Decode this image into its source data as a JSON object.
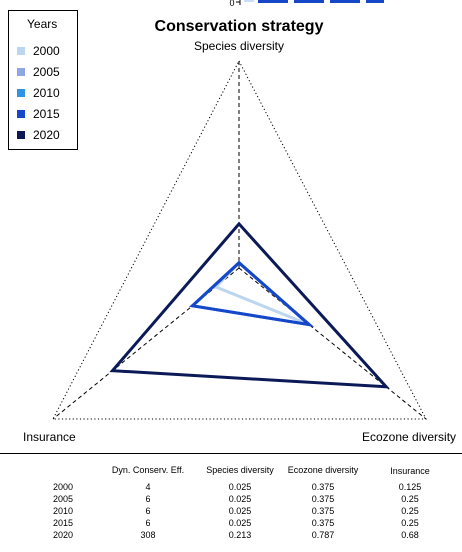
{
  "chart_data": {
    "type": "radar",
    "title": "Conservation strategy",
    "axes": [
      "Species diversity",
      "Ecozone diversity",
      "Insurance"
    ],
    "axis_range": [
      0,
      1
    ],
    "series": [
      {
        "name": "2000",
        "color": "#bcd6ef",
        "values": [
          0.025,
          0.375,
          0.125
        ]
      },
      {
        "name": "2005",
        "color": "#8fa5e6",
        "values": [
          0.025,
          0.375,
          0.25
        ]
      },
      {
        "name": "2010",
        "color": "#2f94e6",
        "values": [
          0.025,
          0.375,
          0.25
        ]
      },
      {
        "name": "2015",
        "color": "#1747c9",
        "values": [
          0.025,
          0.375,
          0.25
        ]
      },
      {
        "name": "2020",
        "color": "#0b1a57",
        "values": [
          0.213,
          0.787,
          0.68
        ]
      }
    ],
    "legend": {
      "title": "Years",
      "placement": "top-left"
    },
    "table": {
      "columns": [
        "Dyn. Conserv. Eff.",
        "Species diversity",
        "Ecozone diversity",
        "Insurance"
      ],
      "rows": [
        {
          "year": "2000",
          "cells": [
            "4",
            "0.025",
            "0.375",
            "0.125"
          ]
        },
        {
          "year": "2005",
          "cells": [
            "6",
            "0.025",
            "0.375",
            "0.25"
          ]
        },
        {
          "year": "2010",
          "cells": [
            "6",
            "0.025",
            "0.375",
            "0.25"
          ]
        },
        {
          "year": "2015",
          "cells": [
            "6",
            "0.025",
            "0.375",
            "0.25"
          ]
        },
        {
          "year": "2020",
          "cells": [
            "308",
            "0.213",
            "0.787",
            "0.68"
          ]
        }
      ]
    },
    "cropped_top_fragment": {
      "tick_label": "0"
    }
  }
}
